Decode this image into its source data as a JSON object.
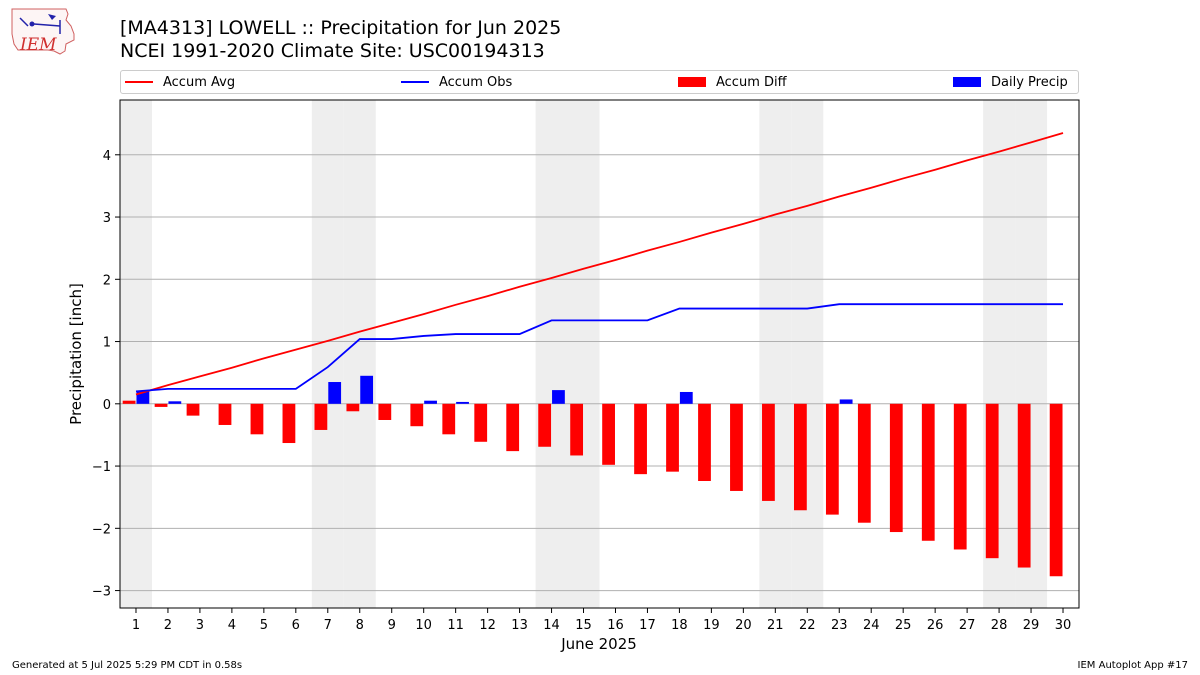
{
  "header": {
    "title_line1": "[MA4313] LOWELL :: Precipitation for Jun 2025",
    "title_line2": "NCEI 1991-2020 Climate Site: USC00194313",
    "logo_text": "IEM"
  },
  "legend": {
    "items": [
      {
        "label": "Accum Avg",
        "color": "#ff0000",
        "kind": "line"
      },
      {
        "label": "Accum Obs",
        "color": "#0000ff",
        "kind": "line"
      },
      {
        "label": "Accum Diff",
        "color": "#ff0000",
        "kind": "box"
      },
      {
        "label": "Daily Precip",
        "color": "#0000ff",
        "kind": "box"
      }
    ]
  },
  "footer": {
    "generated": "Generated at 5 Jul 2025 5:29 PM CDT in 0.58s",
    "app": "IEM Autoplot App #17"
  },
  "chart_data": {
    "type": "bar",
    "title": "[MA4313] LOWELL :: Precipitation for Jun 2025",
    "xlabel": "June 2025",
    "ylabel": "Precipitation [inch]",
    "xlim": [
      0.5,
      30.5
    ],
    "ylim": [
      -3.28,
      4.88
    ],
    "yticks": [
      -3,
      -2,
      -1,
      0,
      1,
      2,
      3,
      4
    ],
    "ytick_labels": [
      "−3",
      "−2",
      "−1",
      "0",
      "1",
      "2",
      "3",
      "4"
    ],
    "x": [
      1,
      2,
      3,
      4,
      5,
      6,
      7,
      8,
      9,
      10,
      11,
      12,
      13,
      14,
      15,
      16,
      17,
      18,
      19,
      20,
      21,
      22,
      23,
      24,
      25,
      26,
      27,
      28,
      29,
      30
    ],
    "weekends": [
      1,
      7,
      8,
      14,
      15,
      21,
      22,
      28,
      29
    ],
    "grid": "horizontal",
    "legend_position": "top",
    "series": [
      {
        "name": "Accum Avg",
        "type": "line",
        "color": "#ff0000",
        "values": [
          0.15,
          0.3,
          0.44,
          0.58,
          0.73,
          0.87,
          1.01,
          1.16,
          1.3,
          1.44,
          1.59,
          1.73,
          1.88,
          2.02,
          2.17,
          2.31,
          2.46,
          2.6,
          2.75,
          2.89,
          3.04,
          3.18,
          3.33,
          3.47,
          3.62,
          3.76,
          3.91,
          4.05,
          4.2,
          4.35
        ]
      },
      {
        "name": "Accum Obs",
        "type": "line",
        "color": "#0000ff",
        "values": [
          0.2,
          0.24,
          0.24,
          0.24,
          0.24,
          0.24,
          0.59,
          1.04,
          1.04,
          1.09,
          1.12,
          1.12,
          1.12,
          1.34,
          1.34,
          1.34,
          1.34,
          1.53,
          1.53,
          1.53,
          1.53,
          1.53,
          1.6,
          1.6,
          1.6,
          1.6,
          1.6,
          1.6,
          1.6,
          1.6
        ]
      },
      {
        "name": "Accum Diff",
        "type": "bar",
        "color": "#ff0000",
        "values": [
          0.05,
          -0.05,
          -0.19,
          -0.34,
          -0.49,
          -0.63,
          -0.42,
          -0.12,
          -0.26,
          -0.36,
          -0.49,
          -0.61,
          -0.76,
          -0.69,
          -0.83,
          -0.98,
          -1.13,
          -1.09,
          -1.24,
          -1.4,
          -1.56,
          -1.71,
          -1.78,
          -1.91,
          -2.06,
          -2.2,
          -2.34,
          -2.48,
          -2.63,
          -2.77
        ]
      },
      {
        "name": "Daily Precip",
        "type": "bar",
        "color": "#0000ff",
        "values": [
          0.2,
          0.04,
          0,
          0,
          0,
          0,
          0.35,
          0.45,
          0,
          0.05,
          0.03,
          0,
          0,
          0.22,
          0,
          0,
          0,
          0.19,
          0,
          0,
          0,
          0,
          0.07,
          0,
          0,
          0,
          0,
          0,
          0,
          0
        ]
      }
    ]
  }
}
